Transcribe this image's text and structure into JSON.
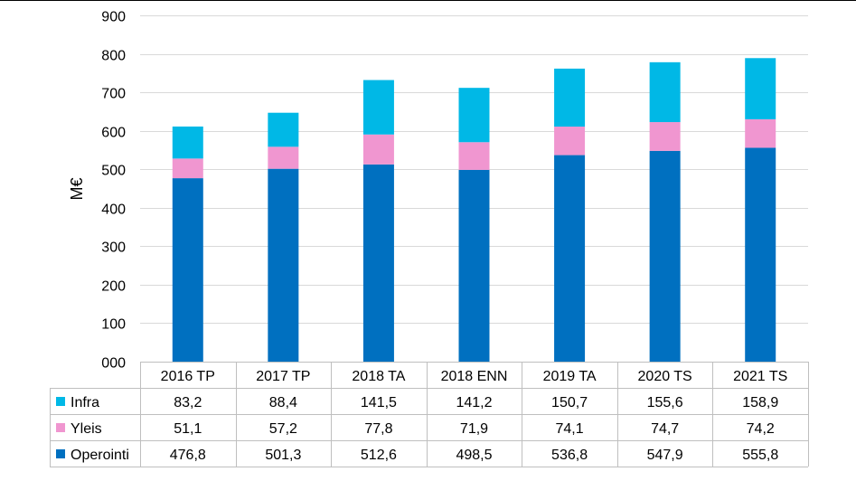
{
  "chart_data": {
    "type": "bar",
    "stacked": true,
    "ylabel": "M€",
    "ylim": [
      0,
      900
    ],
    "ytick_step": 100,
    "yticks": [
      "000",
      "100",
      "200",
      "300",
      "400",
      "500",
      "600",
      "700",
      "800",
      "900"
    ],
    "grid": true,
    "legend": "data-table-left",
    "categories": [
      "2016 TP",
      "2017 TP",
      "2018 TA",
      "2018 ENN",
      "2019 TA",
      "2020 TS",
      "2021 TS"
    ],
    "series": [
      {
        "name": "Operointi",
        "color": "#0070C0",
        "values": [
          476.8,
          501.3,
          512.6,
          498.5,
          536.8,
          547.9,
          555.8
        ],
        "labels": [
          "476,8",
          "501,3",
          "512,6",
          "498,5",
          "536,8",
          "547,9",
          "555,8"
        ]
      },
      {
        "name": "Yleis",
        "color": "#F096D0",
        "values": [
          51.1,
          57.2,
          77.8,
          71.9,
          74.1,
          74.7,
          74.2
        ],
        "labels": [
          "51,1",
          "57,2",
          "77,8",
          "71,9",
          "74,1",
          "74,7",
          "74,2"
        ]
      },
      {
        "name": "Infra",
        "color": "#00B8E6",
        "values": [
          83.2,
          88.4,
          141.5,
          141.2,
          150.7,
          155.6,
          158.9
        ],
        "labels": [
          "83,2",
          "88,4",
          "141,5",
          "141,2",
          "150,7",
          "155,6",
          "158,9"
        ]
      }
    ],
    "table_row_order": [
      "Infra",
      "Yleis",
      "Operointi"
    ]
  }
}
